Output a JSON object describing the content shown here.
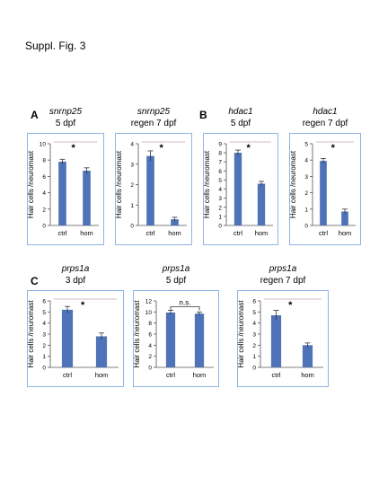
{
  "figure_title": "Suppl. Fig. 3",
  "panel_letters": [
    "A",
    "B",
    "C"
  ],
  "style": {
    "bar_color": "#4f73b8",
    "frame_color": "#8fb4e3",
    "sig_line_color": "#c9a0a0"
  },
  "chart_data": [
    {
      "type": "bar",
      "gene": "snrnp25",
      "stage": "5 dpf",
      "categories": [
        "ctrl",
        "hom"
      ],
      "values": [
        7.8,
        6.7
      ],
      "errors": [
        0.3,
        0.35
      ],
      "ylabel": "Hair cells /neuromast",
      "ylim": [
        0,
        10
      ],
      "yticks": [
        0,
        2,
        4,
        6,
        8,
        10
      ],
      "significance": "*"
    },
    {
      "type": "bar",
      "gene": "snrnp25",
      "stage": "regen 7 dpf",
      "categories": [
        "ctrl",
        "hom"
      ],
      "values": [
        3.4,
        0.3
      ],
      "errors": [
        0.25,
        0.1
      ],
      "ylabel": "Hair cells /neuromast",
      "ylim": [
        0,
        4
      ],
      "yticks": [
        0,
        1,
        2,
        3,
        4
      ],
      "significance": "*"
    },
    {
      "type": "bar",
      "gene": "hdac1",
      "stage": "5 dpf",
      "categories": [
        "ctrl",
        "hom"
      ],
      "values": [
        8.0,
        4.6
      ],
      "errors": [
        0.3,
        0.25
      ],
      "ylabel": "Hair cells /neuromast",
      "ylim": [
        0,
        9
      ],
      "yticks": [
        0,
        1,
        2,
        3,
        4,
        5,
        6,
        7,
        8,
        9
      ],
      "significance": "*"
    },
    {
      "type": "bar",
      "gene": "hdac1",
      "stage": "regen 7 dpf",
      "categories": [
        "ctrl",
        "hom"
      ],
      "values": [
        3.95,
        0.85
      ],
      "errors": [
        0.15,
        0.15
      ],
      "ylabel": "Hair cells /neuromast",
      "ylim": [
        0,
        5
      ],
      "yticks": [
        0,
        1,
        2,
        3,
        4,
        5
      ],
      "significance": "*"
    },
    {
      "type": "bar",
      "gene": "prps1a",
      "stage": "3 dpf",
      "categories": [
        "ctrl",
        "hom"
      ],
      "values": [
        5.2,
        2.8
      ],
      "errors": [
        0.3,
        0.3
      ],
      "ylabel": "Hair cells /neuromast",
      "ylim": [
        0,
        6
      ],
      "yticks": [
        0,
        1,
        2,
        3,
        4,
        5,
        6
      ],
      "significance": "*"
    },
    {
      "type": "bar",
      "gene": "prps1a",
      "stage": "5 dpf",
      "categories": [
        "ctrl",
        "hom"
      ],
      "values": [
        9.9,
        9.7
      ],
      "errors": [
        0.4,
        0.3
      ],
      "ylabel": "Hair cells /neuromast",
      "ylim": [
        0,
        12
      ],
      "yticks": [
        0,
        2,
        4,
        6,
        8,
        10,
        12
      ],
      "significance": "n.s."
    },
    {
      "type": "bar",
      "gene": "prps1a",
      "stage": "regen 7 dpf",
      "categories": [
        "ctrl",
        "hom"
      ],
      "values": [
        4.7,
        2.0
      ],
      "errors": [
        0.45,
        0.2
      ],
      "ylabel": "Hair cells /neuromast",
      "ylim": [
        0,
        6
      ],
      "yticks": [
        0,
        1,
        2,
        3,
        4,
        5,
        6
      ],
      "significance": "*"
    }
  ]
}
